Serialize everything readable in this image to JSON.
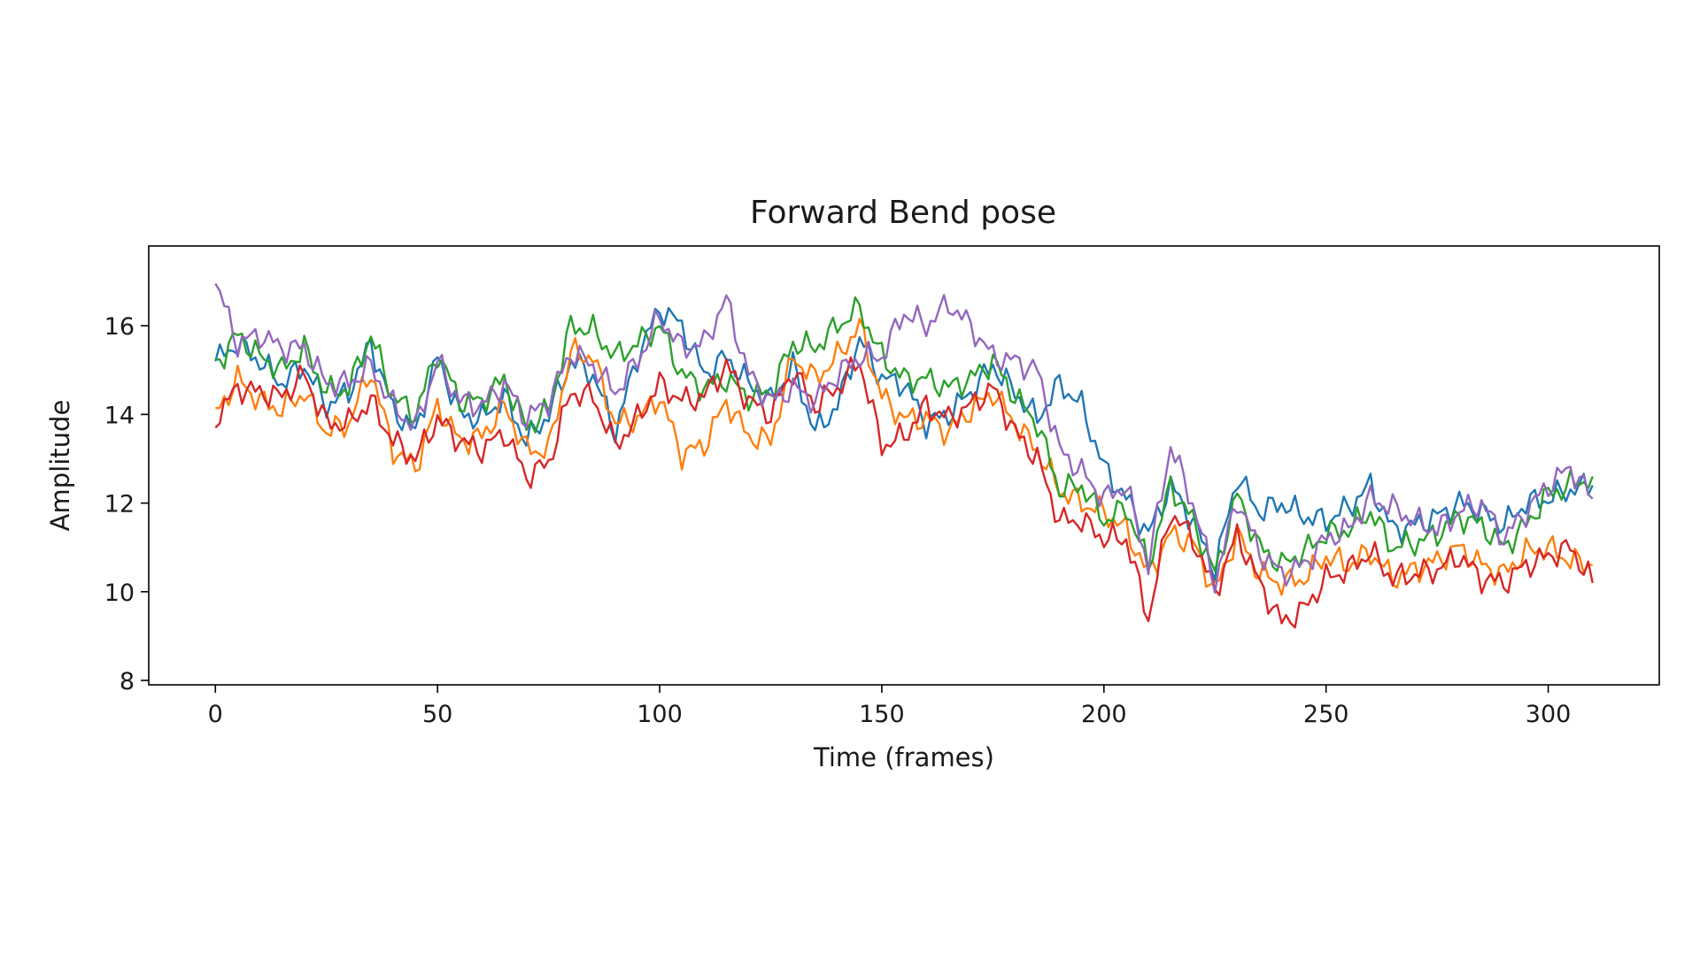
{
  "chart_data": {
    "type": "line",
    "title": "Forward Bend pose",
    "xlabel": "Time (frames)",
    "ylabel": "Amplitude",
    "xlim": [
      -15,
      325
    ],
    "ylim": [
      7.9,
      17.8
    ],
    "xticks": [
      0,
      50,
      100,
      150,
      200,
      250,
      300
    ],
    "yticks": [
      8,
      10,
      12,
      14,
      16
    ],
    "grid": false,
    "legend": "none",
    "x": {
      "start": 0,
      "end": 310,
      "step": 5
    },
    "series": [
      {
        "color": "#1f77b4",
        "values": [
          15.2,
          15.6,
          15.2,
          14.7,
          15.1,
          14.2,
          14.5,
          15.6,
          14.1,
          13.6,
          15.3,
          14.0,
          13.9,
          14.4,
          13.4,
          14.0,
          15.2,
          14.9,
          13.6,
          15.3,
          16.4,
          16.0,
          14.9,
          15.3,
          14.7,
          14.3,
          15.1,
          13.6,
          14.2,
          15.7,
          14.8,
          14.7,
          13.8,
          14.0,
          14.5,
          15.1,
          14.5,
          13.9,
          14.7,
          14.2,
          12.8,
          12.1,
          11.3,
          12.4,
          11.6,
          10.5,
          12.6,
          11.8,
          12.0,
          11.7,
          11.6,
          11.9,
          12.4,
          11.4,
          11.5,
          11.7,
          12.0,
          11.8,
          11.5,
          12.0,
          12.1,
          12.3,
          12.4
        ]
      },
      {
        "color": "#ff7f0e",
        "values": [
          14.0,
          14.8,
          14.3,
          14.1,
          14.5,
          13.6,
          13.8,
          15.0,
          13.2,
          12.8,
          14.2,
          13.4,
          13.5,
          14.2,
          13.2,
          13.2,
          15.4,
          15.3,
          13.8,
          13.9,
          14.4,
          13.1,
          13.3,
          14.3,
          13.5,
          13.4,
          15.3,
          14.8,
          15.3,
          16.0,
          14.4,
          13.9,
          13.9,
          13.6,
          14.1,
          14.5,
          13.8,
          13.2,
          12.3,
          12.0,
          11.8,
          11.4,
          10.4,
          11.3,
          11.1,
          10.0,
          11.3,
          10.4,
          10.2,
          10.3,
          10.8,
          10.6,
          10.9,
          10.3,
          10.5,
          10.7,
          11.0,
          10.6,
          10.4,
          10.9,
          11.0,
          10.7,
          10.6
        ]
      },
      {
        "color": "#2ca02c",
        "values": [
          15.1,
          15.8,
          15.3,
          15.0,
          15.5,
          14.5,
          14.6,
          15.8,
          14.4,
          14.0,
          15.4,
          14.3,
          14.3,
          14.8,
          13.7,
          14.1,
          16.0,
          15.9,
          15.3,
          15.6,
          16.0,
          14.9,
          14.6,
          14.8,
          14.4,
          14.5,
          15.6,
          15.5,
          16.0,
          16.4,
          15.3,
          14.8,
          14.8,
          14.6,
          14.8,
          15.2,
          14.4,
          13.8,
          12.3,
          12.4,
          11.6,
          11.9,
          10.6,
          12.4,
          11.6,
          10.4,
          12.2,
          11.0,
          10.6,
          10.9,
          11.3,
          11.4,
          11.8,
          11.0,
          11.1,
          11.3,
          11.7,
          11.5,
          11.0,
          11.5,
          12.2,
          12.4,
          12.6
        ]
      },
      {
        "color": "#d62728",
        "values": [
          13.9,
          14.6,
          14.5,
          14.4,
          14.9,
          13.8,
          13.8,
          14.3,
          13.4,
          13.0,
          13.9,
          13.4,
          13.2,
          13.6,
          12.6,
          12.9,
          14.5,
          14.4,
          13.3,
          13.9,
          14.7,
          14.3,
          14.4,
          15.1,
          14.3,
          14.0,
          15.0,
          14.2,
          14.6,
          15.2,
          13.3,
          13.5,
          14.2,
          13.9,
          14.2,
          14.6,
          13.6,
          13.0,
          11.6,
          11.6,
          11.2,
          11.2,
          9.4,
          11.8,
          11.2,
          10.0,
          11.3,
          10.2,
          9.3,
          9.6,
          10.3,
          10.5,
          10.9,
          10.3,
          10.4,
          10.5,
          10.8,
          10.3,
          10.2,
          10.6,
          10.8,
          11.0,
          10.2
        ]
      },
      {
        "color": "#9467bd",
        "values": [
          17.0,
          15.6,
          15.8,
          15.5,
          15.5,
          14.7,
          14.7,
          15.1,
          14.2,
          13.7,
          15.2,
          14.3,
          14.2,
          14.7,
          13.9,
          14.3,
          15.4,
          15.1,
          14.5,
          15.2,
          16.2,
          15.5,
          15.6,
          16.6,
          14.9,
          14.3,
          14.6,
          14.3,
          14.9,
          15.3,
          15.3,
          16.3,
          16.0,
          16.5,
          16.0,
          15.3,
          15.2,
          15.0,
          13.2,
          12.7,
          12.1,
          12.4,
          10.6,
          13.3,
          12.0,
          10.2,
          12.1,
          10.9,
          10.4,
          10.6,
          11.2,
          11.4,
          12.1,
          11.9,
          11.6,
          11.4,
          11.8,
          12.0,
          11.2,
          11.8,
          12.4,
          12.8,
          12.1
        ]
      }
    ]
  }
}
